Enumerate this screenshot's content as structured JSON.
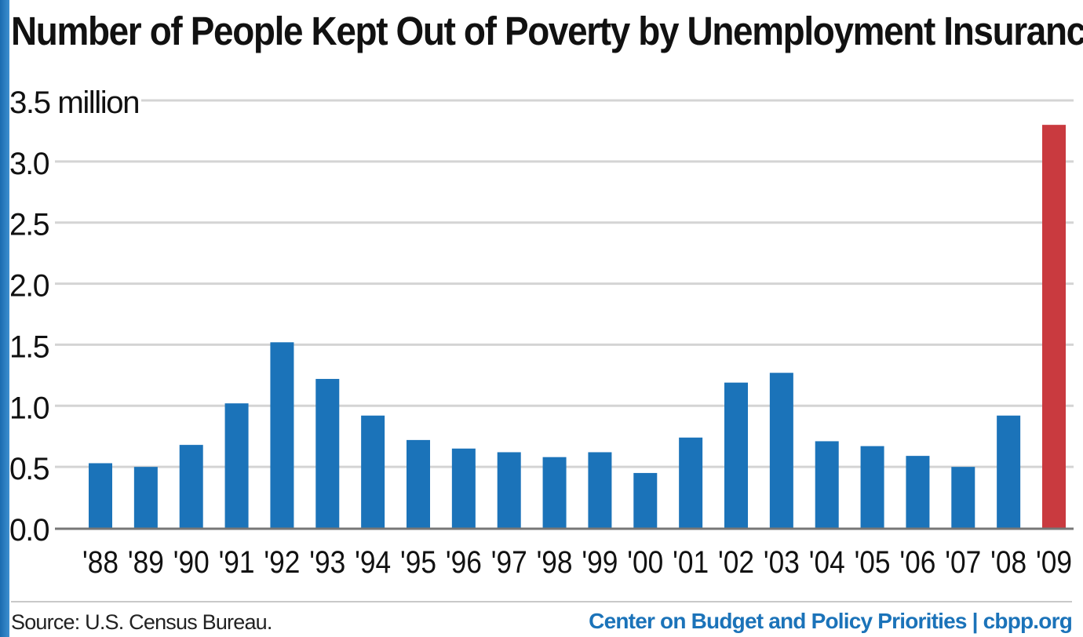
{
  "chart_data": {
    "type": "bar",
    "title": "Number of People Kept Out of Poverty by Unemployment Insurance",
    "categories": [
      "'88",
      "'89",
      "'90",
      "'91",
      "'92",
      "'93",
      "'94",
      "'95",
      "'96",
      "'97",
      "'98",
      "'99",
      "'00",
      "'01",
      "'02",
      "'03",
      "'04",
      "'05",
      "'06",
      "'07",
      "'08",
      "'09"
    ],
    "values": [
      0.53,
      0.5,
      0.68,
      1.02,
      1.52,
      1.22,
      0.92,
      0.72,
      0.65,
      0.62,
      0.58,
      0.62,
      0.45,
      0.74,
      1.19,
      1.27,
      0.71,
      0.67,
      0.59,
      0.5,
      0.92,
      3.3
    ],
    "ylim": [
      0,
      3.5
    ],
    "yticks": [
      "0.0",
      "0.5",
      "1.0",
      "1.5",
      "2.0",
      "2.5",
      "3.0",
      "3.5 million"
    ],
    "ytick_values": [
      0,
      0.5,
      1.0,
      1.5,
      2.0,
      2.5,
      3.0,
      3.5
    ],
    "grid": true,
    "colors": {
      "bar": "#1b73b9",
      "highlight": "#c93a3f",
      "grid": "#d4d4d4",
      "axis": "#777777"
    },
    "highlight_category": "'09"
  },
  "footer": {
    "source": "Source: U.S. Census Bureau.",
    "credit": "Center on Budget and Policy Priorities | cbpp.org"
  }
}
